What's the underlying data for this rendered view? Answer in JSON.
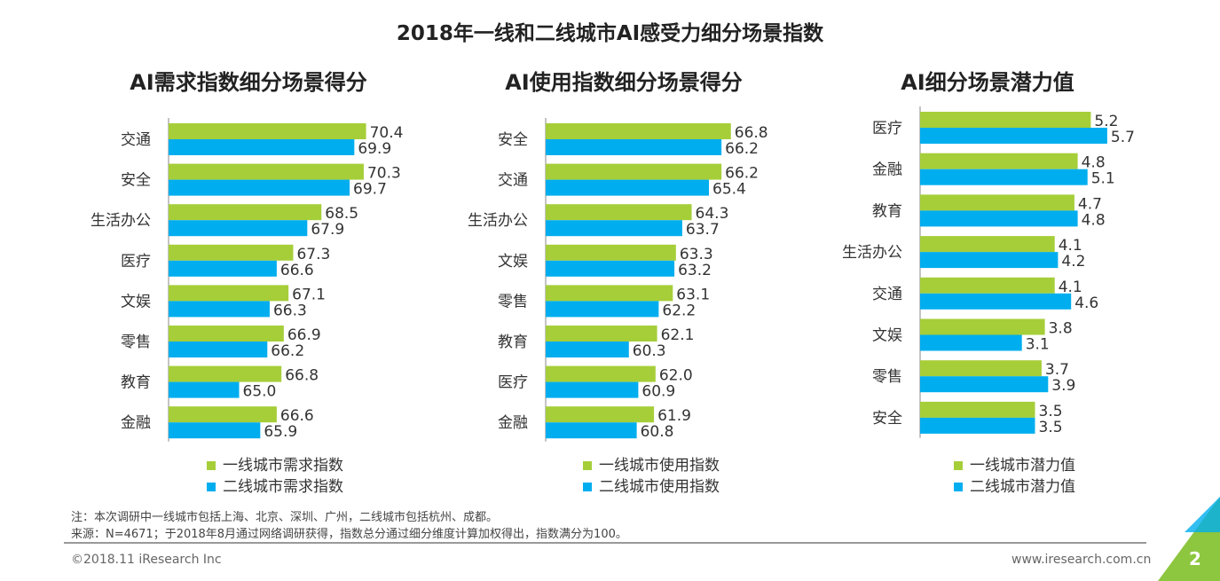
{
  "title": "2018年一线和二线城市AI感受力细分场景指数",
  "colors": {
    "tier1": "#A6CE39",
    "tier2": "#00AEEF"
  },
  "chart_data": [
    {
      "type": "bar",
      "orientation": "horizontal",
      "title": "AI需求指数细分场景得分",
      "categories": [
        "交通",
        "安全",
        "生活办公",
        "医疗",
        "文娱",
        "零售",
        "教育",
        "金融"
      ],
      "series": [
        {
          "name": "一线城市需求指数",
          "values": [
            70.4,
            70.3,
            68.5,
            67.3,
            67.1,
            66.9,
            66.8,
            66.6
          ]
        },
        {
          "name": "二线城市需求指数",
          "values": [
            69.9,
            69.7,
            67.9,
            66.6,
            66.3,
            66.2,
            65.0,
            65.9
          ]
        }
      ],
      "xlim": [
        62,
        72
      ],
      "legend": "bottom",
      "grid": false
    },
    {
      "type": "bar",
      "orientation": "horizontal",
      "title": "AI使用指数细分场景得分",
      "categories": [
        "安全",
        "交通",
        "生活办公",
        "文娱",
        "零售",
        "教育",
        "医疗",
        "金融"
      ],
      "series": [
        {
          "name": "一线城市使用指数",
          "values": [
            66.8,
            66.2,
            64.3,
            63.3,
            63.1,
            62.1,
            62.0,
            61.9
          ]
        },
        {
          "name": "二线城市使用指数",
          "values": [
            66.2,
            65.4,
            63.7,
            63.2,
            62.2,
            60.3,
            60.9,
            60.8
          ]
        }
      ],
      "xlim": [
        55,
        68
      ],
      "legend": "bottom",
      "grid": false
    },
    {
      "type": "bar",
      "orientation": "horizontal",
      "title": "AI细分场景潜力值",
      "categories": [
        "医疗",
        "金融",
        "教育",
        "生活办公",
        "交通",
        "文娱",
        "零售",
        "安全"
      ],
      "series": [
        {
          "name": "一线城市潜力值",
          "values": [
            5.2,
            4.8,
            4.7,
            4.1,
            4.1,
            3.8,
            3.7,
            3.5
          ]
        },
        {
          "name": "二线城市潜力值",
          "values": [
            5.7,
            5.1,
            4.8,
            4.2,
            4.6,
            3.1,
            3.9,
            3.5
          ]
        }
      ],
      "xlim": [
        0,
        6
      ],
      "legend": "bottom",
      "grid": false
    }
  ],
  "notes": {
    "note": "注：本次调研中一线城市包括上海、北京、深圳、广州，二线城市包括杭州、成都。",
    "source": "来源：N=4671；于2018年8月通过网络调研获得，指数总分通过细分维度计算加权得出，指数满分为100。"
  },
  "footer": {
    "copyright": "©2018.11 iResearch Inc",
    "website": "www.iresearch.com.cn",
    "page": "2"
  }
}
